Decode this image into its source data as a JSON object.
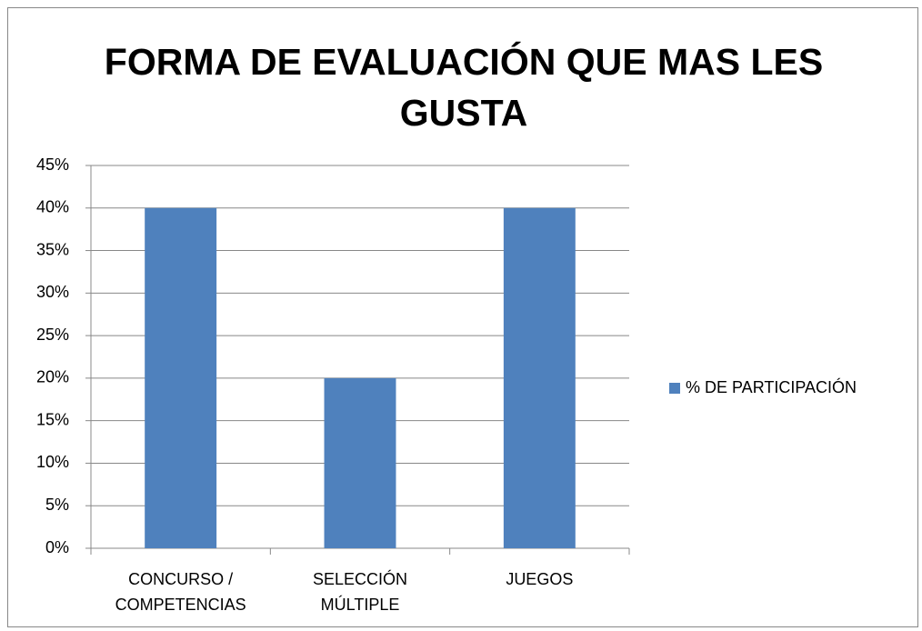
{
  "chart_data": {
    "type": "bar",
    "title": "FORMA DE EVALUACIÓN QUE MAS LES GUSTA",
    "categories": [
      "CONCURSO / COMPETENCIAS",
      "SELECCIÓN MÚLTIPLE",
      "JUEGOS"
    ],
    "series": [
      {
        "name": "% DE PARTICIPACIÓN",
        "color": "#4f81bd",
        "values": [
          40,
          20,
          40
        ]
      }
    ],
    "ylim": [
      0,
      45
    ],
    "yticks": [
      {
        "value": 0,
        "label": "0%"
      },
      {
        "value": 5,
        "label": "5%"
      },
      {
        "value": 10,
        "label": "10%"
      },
      {
        "value": 15,
        "label": "15%"
      },
      {
        "value": 20,
        "label": "20%"
      },
      {
        "value": 25,
        "label": "25%"
      },
      {
        "value": 30,
        "label": "30%"
      },
      {
        "value": 35,
        "label": "35%"
      },
      {
        "value": 40,
        "label": "40%"
      },
      {
        "value": 45,
        "label": "45%"
      }
    ],
    "grid": true,
    "legend": "right"
  }
}
